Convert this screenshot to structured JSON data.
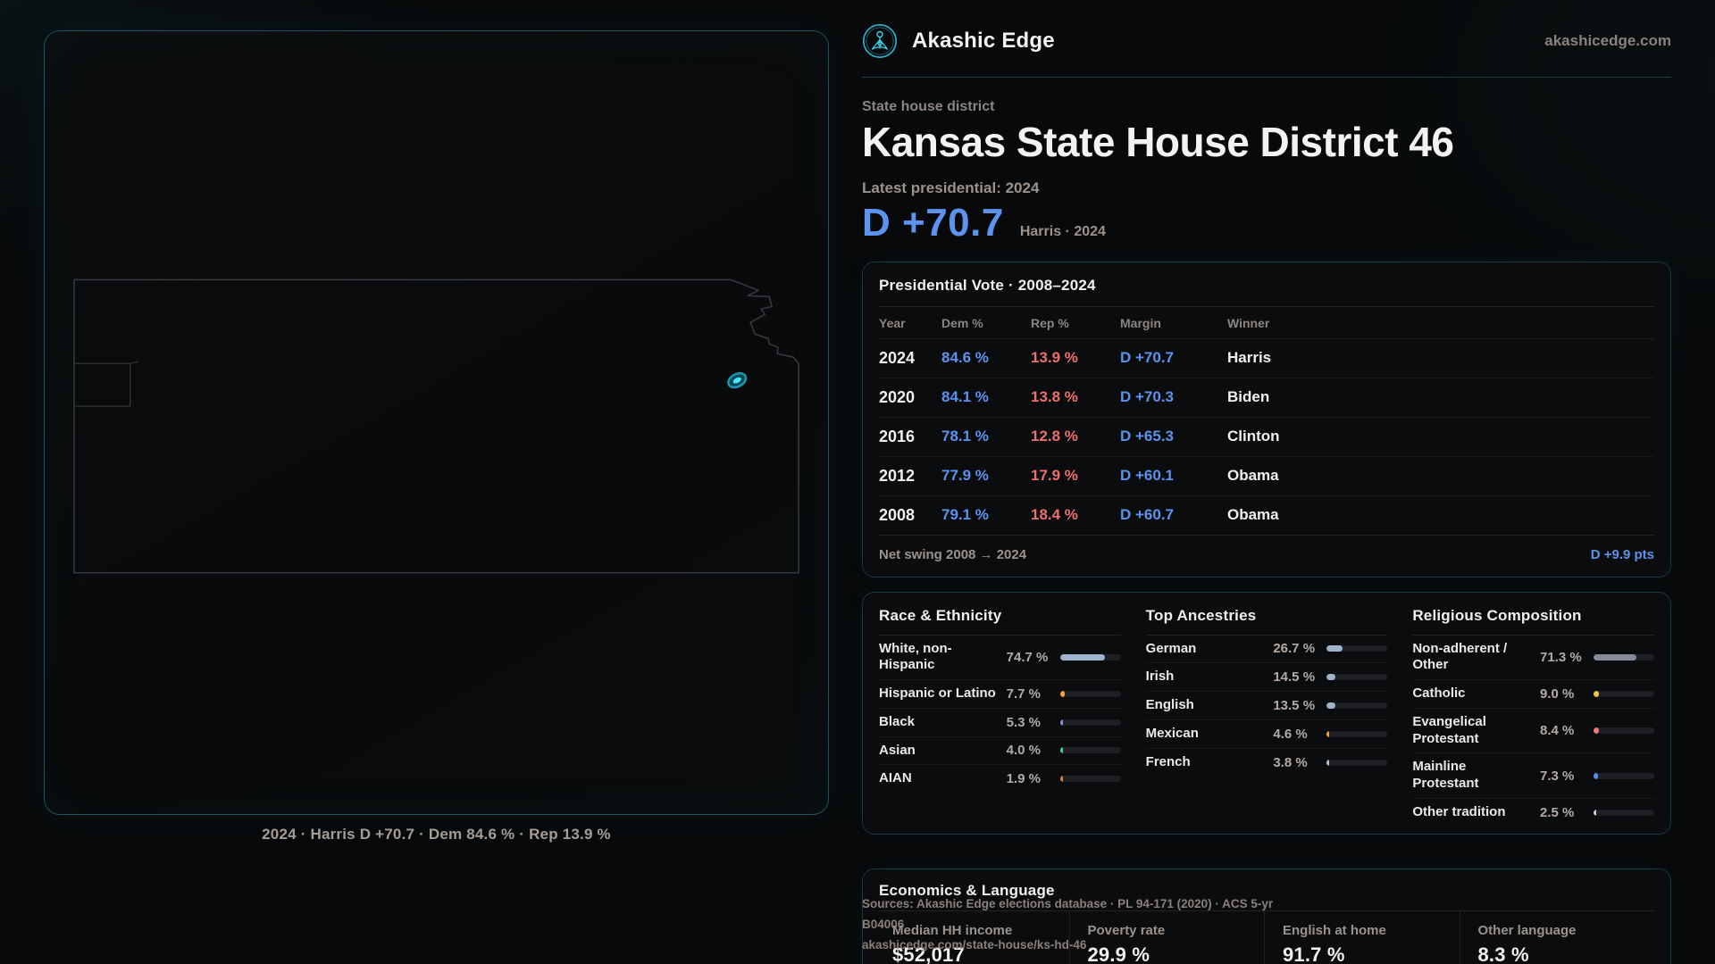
{
  "brand": {
    "name": "Akashic Edge",
    "domain": "akashicedge.com"
  },
  "header": {
    "eyebrow": "State house district",
    "title": "Kansas State House District 46",
    "latest_label": "Latest presidential: 2024",
    "margin_big": "D +70.7",
    "margin_context": "Harris · 2024"
  },
  "map": {
    "caption": "2024 · Harris D +70.7 · Dem 84.6 % · Rep 13.9 %"
  },
  "presidential": {
    "title": "Presidential Vote · 2008–2024",
    "columns": {
      "year": "Year",
      "dem": "Dem %",
      "rep": "Rep %",
      "margin": "Margin",
      "winner": "Winner"
    },
    "rows": [
      {
        "year": "2024",
        "dem": "84.6 %",
        "rep": "13.9 %",
        "margin": "D +70.7",
        "winner": "Harris"
      },
      {
        "year": "2020",
        "dem": "84.1 %",
        "rep": "13.8 %",
        "margin": "D +70.3",
        "winner": "Biden"
      },
      {
        "year": "2016",
        "dem": "78.1 %",
        "rep": "12.8 %",
        "margin": "D +65.3",
        "winner": "Clinton"
      },
      {
        "year": "2012",
        "dem": "77.9 %",
        "rep": "17.9 %",
        "margin": "D +60.1",
        "winner": "Obama"
      },
      {
        "year": "2008",
        "dem": "79.1 %",
        "rep": "18.4 %",
        "margin": "D +60.7",
        "winner": "Obama"
      }
    ],
    "net_swing_label": "Net swing 2008 → 2024",
    "net_swing_value": "D +9.9 pts"
  },
  "demographics": {
    "race": {
      "title": "Race & Ethnicity",
      "rows": [
        {
          "label": "White, non-\nHispanic",
          "value": "74.7 %",
          "pct": 74.7,
          "color": "#9fb3cc"
        },
        {
          "label": "Hispanic or Latino",
          "value": "7.7 %",
          "pct": 7.7,
          "color": "#f2a43c"
        },
        {
          "label": "Black",
          "value": "5.3 %",
          "pct": 5.3,
          "color": "#8f86f2"
        },
        {
          "label": "Asian",
          "value": "4.0 %",
          "pct": 4.0,
          "color": "#35d6a0"
        },
        {
          "label": "AIAN",
          "value": "1.9 %",
          "pct": 1.9,
          "color": "#e07e28"
        }
      ]
    },
    "ancestries": {
      "title": "Top Ancestries",
      "rows": [
        {
          "label": "German",
          "value": "26.7 %",
          "pct": 26.7,
          "color": "#9fb3cc"
        },
        {
          "label": "Irish",
          "value": "14.5 %",
          "pct": 14.5,
          "color": "#9fb3cc"
        },
        {
          "label": "English",
          "value": "13.5 %",
          "pct": 13.5,
          "color": "#9fb3cc"
        },
        {
          "label": "Mexican",
          "value": "4.6 %",
          "pct": 4.6,
          "color": "#f2a43c"
        },
        {
          "label": "French",
          "value": "3.8 %",
          "pct": 3.8,
          "color": "#b9c2cc"
        }
      ]
    },
    "religion": {
      "title": "Religious Composition",
      "rows": [
        {
          "label": "Non-adherent /\nOther",
          "value": "71.3 %",
          "pct": 71.3,
          "color": "#868a98"
        },
        {
          "label": "Catholic",
          "value": "9.0 %",
          "pct": 9.0,
          "color": "#e8c83c"
        },
        {
          "label": "Evangelical\nProtestant",
          "value": "8.4 %",
          "pct": 8.4,
          "color": "#e87c7c"
        },
        {
          "label": "Mainline\nProtestant",
          "value": "7.3 %",
          "pct": 7.3,
          "color": "#5590e8"
        },
        {
          "label": "Other tradition",
          "value": "2.5 %",
          "pct": 2.5,
          "color": "#c8ccd4"
        }
      ]
    }
  },
  "economics": {
    "title": "Economics & Language",
    "stats": [
      {
        "label": "Median HH income",
        "value": "$52,017"
      },
      {
        "label": "Poverty rate",
        "value": "29.9 %"
      },
      {
        "label": "English at home",
        "value": "91.7 %"
      },
      {
        "label": "Other language",
        "value": "8.3 %"
      }
    ]
  },
  "source": {
    "line1": "Sources: Akashic Edge elections database · PL 94-171 (2020) · ACS 5-yr B04006",
    "line2": "akashicedge.com/state-house/ks-hd-46"
  },
  "colors": {
    "dem_blue": "#5b93ee",
    "rep_red": "#ed6e6e",
    "accent_teal": "#22d3ee",
    "district_fill": "#45e7fa"
  }
}
